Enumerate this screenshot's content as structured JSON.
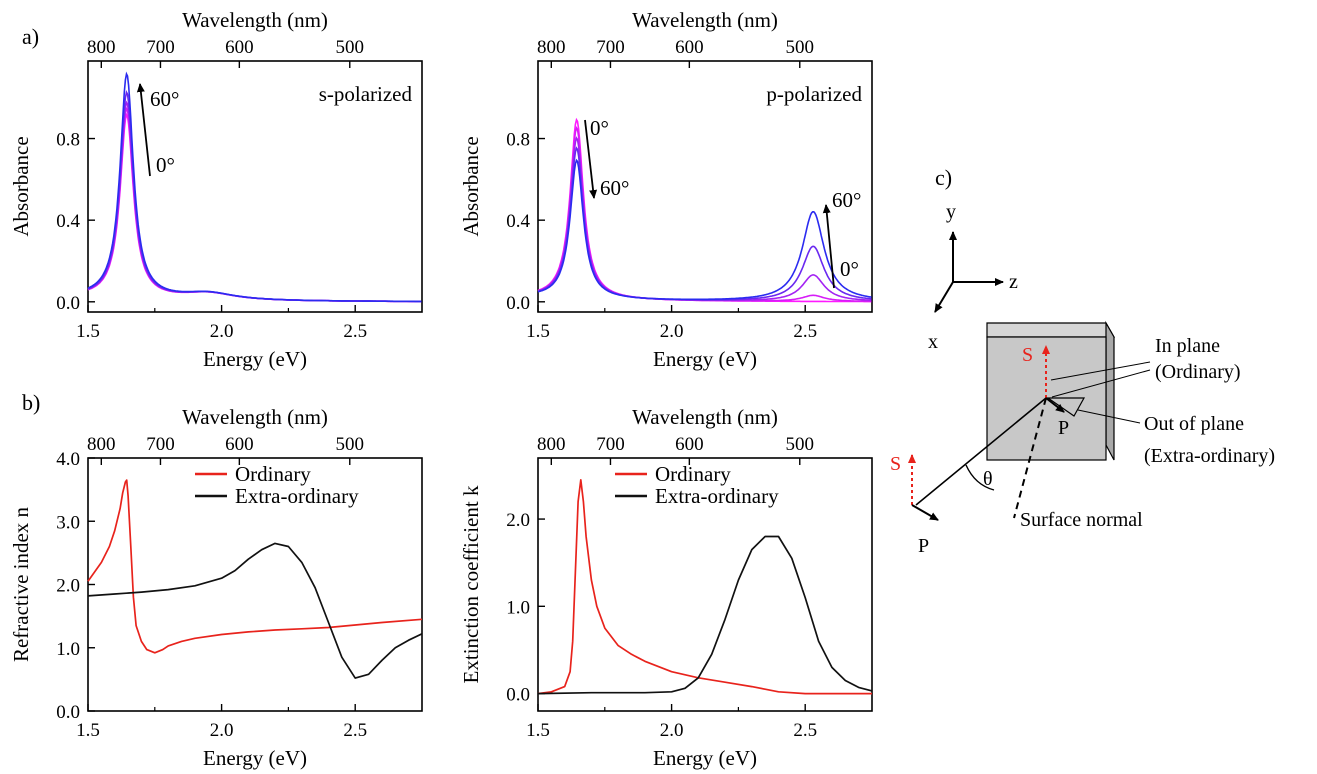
{
  "panels": {
    "a": "a)",
    "b": "b)",
    "c": "c)"
  },
  "colors": {
    "red": "#e8231c",
    "black": "#111111",
    "blue": "#2b2bf0",
    "magenta": "#ff1aff",
    "box": "#c8c8c8"
  },
  "chart_data": [
    {
      "id": "a-left",
      "type": "line",
      "xlabel": "Energy (eV)",
      "x2label": "Wavelength (nm)",
      "ylabel": "Absorbance",
      "xlim": [
        1.5,
        2.75
      ],
      "ylim": [
        -0.05,
        1.18
      ],
      "xticks": [
        1.5,
        2.0,
        2.5
      ],
      "xticklabels": [
        "1.5",
        "2.0",
        "2.5"
      ],
      "yticks": [
        0.0,
        0.4,
        0.8
      ],
      "yticklabels": [
        "0.0",
        "0.4",
        "0.8"
      ],
      "x2ticks": [
        800,
        700,
        600,
        500
      ],
      "annotation": "s-polarized",
      "arrow_start_label": "0°",
      "arrow_end_label": "60°",
      "series": [
        {
          "color": "#ff1aff",
          "peak": 0.9,
          "ev2": 0.012
        },
        {
          "color": "#d61df7",
          "peak": 0.93,
          "ev2": 0.012
        },
        {
          "color": "#a323f3",
          "peak": 0.96,
          "ev2": 0.012
        },
        {
          "color": "#6a28f0",
          "peak": 1.01,
          "ev2": 0.012
        },
        {
          "color": "#2b2bf0",
          "peak": 1.1,
          "ev2": 0.012
        }
      ]
    },
    {
      "id": "a-right",
      "type": "line",
      "xlabel": "Energy (eV)",
      "x2label": "Wavelength (nm)",
      "ylabel": "Absorbance",
      "xlim": [
        1.5,
        2.75
      ],
      "ylim": [
        -0.05,
        1.18
      ],
      "xticks": [
        1.5,
        2.0,
        2.5
      ],
      "xticklabels": [
        "1.5",
        "2.0",
        "2.5"
      ],
      "yticks": [
        0.0,
        0.4,
        0.8
      ],
      "yticklabels": [
        "0.0",
        "0.4",
        "0.8"
      ],
      "x2ticks": [
        800,
        700,
        600,
        500
      ],
      "annotation": "p-polarized",
      "arrow1_start_label": "0°",
      "arrow1_end_label": "60°",
      "arrow2_start_label": "0°",
      "arrow2_end_label": "60°",
      "series": [
        {
          "color": "#ff1aff",
          "peak": 0.88,
          "ev2": 0.0
        },
        {
          "color": "#d61df7",
          "peak": 0.84,
          "ev2": 0.03
        },
        {
          "color": "#a323f3",
          "peak": 0.79,
          "ev2": 0.13
        },
        {
          "color": "#6a28f0",
          "peak": 0.74,
          "ev2": 0.27
        },
        {
          "color": "#2b2bf0",
          "peak": 0.68,
          "ev2": 0.44
        }
      ]
    },
    {
      "id": "b-left",
      "type": "line",
      "xlabel": "Energy (eV)",
      "x2label": "Wavelength (nm)",
      "ylabel": "Refractive index n",
      "xlim": [
        1.5,
        2.75
      ],
      "ylim": [
        0.0,
        4.0
      ],
      "xticks": [
        1.5,
        2.0,
        2.5
      ],
      "xticklabels": [
        "1.5",
        "2.0",
        "2.5"
      ],
      "yticks": [
        0.0,
        1.0,
        2.0,
        3.0,
        4.0
      ],
      "yticklabels": [
        "0.0",
        "1.0",
        "2.0",
        "3.0",
        "4.0"
      ],
      "x2ticks": [
        800,
        700,
        600,
        500
      ],
      "legend": [
        "Ordinary",
        "Extra-ordinary"
      ],
      "series": [
        {
          "name": "Ordinary",
          "color": "#e8231c",
          "x": [
            1.5,
            1.55,
            1.58,
            1.6,
            1.62,
            1.63,
            1.64,
            1.645,
            1.65,
            1.66,
            1.67,
            1.68,
            1.7,
            1.72,
            1.75,
            1.78,
            1.8,
            1.85,
            1.9,
            2.0,
            2.1,
            2.2,
            2.3,
            2.4,
            2.5,
            2.6,
            2.75
          ],
          "y": [
            2.05,
            2.35,
            2.6,
            2.85,
            3.2,
            3.45,
            3.62,
            3.65,
            3.4,
            2.6,
            1.8,
            1.35,
            1.1,
            0.97,
            0.92,
            0.97,
            1.03,
            1.1,
            1.15,
            1.21,
            1.25,
            1.28,
            1.3,
            1.32,
            1.36,
            1.4,
            1.45
          ]
        },
        {
          "name": "Extra-ordinary",
          "color": "#111111",
          "x": [
            1.5,
            1.6,
            1.7,
            1.8,
            1.9,
            2.0,
            2.05,
            2.1,
            2.15,
            2.2,
            2.25,
            2.3,
            2.35,
            2.4,
            2.45,
            2.5,
            2.55,
            2.6,
            2.65,
            2.7,
            2.75
          ],
          "y": [
            1.82,
            1.85,
            1.88,
            1.92,
            1.98,
            2.1,
            2.22,
            2.4,
            2.55,
            2.65,
            2.6,
            2.35,
            1.95,
            1.4,
            0.85,
            0.52,
            0.58,
            0.8,
            1.0,
            1.12,
            1.22
          ]
        }
      ]
    },
    {
      "id": "b-right",
      "type": "line",
      "xlabel": "Energy (eV)",
      "x2label": "Wavelength (nm)",
      "ylabel": "Extinction coefficient k",
      "xlim": [
        1.5,
        2.75
      ],
      "ylim": [
        -0.2,
        2.7
      ],
      "xticks": [
        1.5,
        2.0,
        2.5
      ],
      "xticklabels": [
        "1.5",
        "2.0",
        "2.5"
      ],
      "yticks": [
        0.0,
        1.0,
        2.0
      ],
      "yticklabels": [
        "0.0",
        "1.0",
        "2.0"
      ],
      "x2ticks": [
        800,
        700,
        600,
        500
      ],
      "legend": [
        "Ordinary",
        "Extra-ordinary"
      ],
      "series": [
        {
          "name": "Ordinary",
          "color": "#e8231c",
          "x": [
            1.5,
            1.55,
            1.6,
            1.62,
            1.63,
            1.64,
            1.65,
            1.66,
            1.67,
            1.68,
            1.7,
            1.72,
            1.75,
            1.8,
            1.85,
            1.9,
            2.0,
            2.1,
            2.2,
            2.3,
            2.35,
            2.4,
            2.5,
            2.6,
            2.75
          ],
          "y": [
            0.0,
            0.02,
            0.08,
            0.25,
            0.6,
            1.4,
            2.2,
            2.45,
            2.2,
            1.8,
            1.3,
            1.0,
            0.75,
            0.55,
            0.45,
            0.37,
            0.25,
            0.18,
            0.13,
            0.08,
            0.05,
            0.02,
            0.0,
            0.0,
            0.0
          ]
        },
        {
          "name": "Extra-ordinary",
          "color": "#111111",
          "x": [
            1.5,
            1.7,
            1.9,
            2.0,
            2.05,
            2.1,
            2.15,
            2.2,
            2.25,
            2.3,
            2.35,
            2.4,
            2.45,
            2.5,
            2.55,
            2.6,
            2.65,
            2.7,
            2.75
          ],
          "y": [
            0.0,
            0.01,
            0.01,
            0.02,
            0.06,
            0.18,
            0.45,
            0.85,
            1.3,
            1.65,
            1.8,
            1.8,
            1.55,
            1.1,
            0.6,
            0.3,
            0.15,
            0.07,
            0.03
          ]
        }
      ]
    }
  ],
  "diagram": {
    "axis_y": "y",
    "axis_z": "z",
    "axis_x": "x",
    "s_label_inside": "S",
    "s_label_outside": "S",
    "p_label_inside": "P",
    "p_label_outside": "P",
    "theta": "θ",
    "in_plane_1": "In plane",
    "in_plane_2": "(Ordinary)",
    "out_plane_1": "Out of plane",
    "out_plane_2": "(Extra-ordinary)",
    "surface_normal": "Surface normal"
  }
}
